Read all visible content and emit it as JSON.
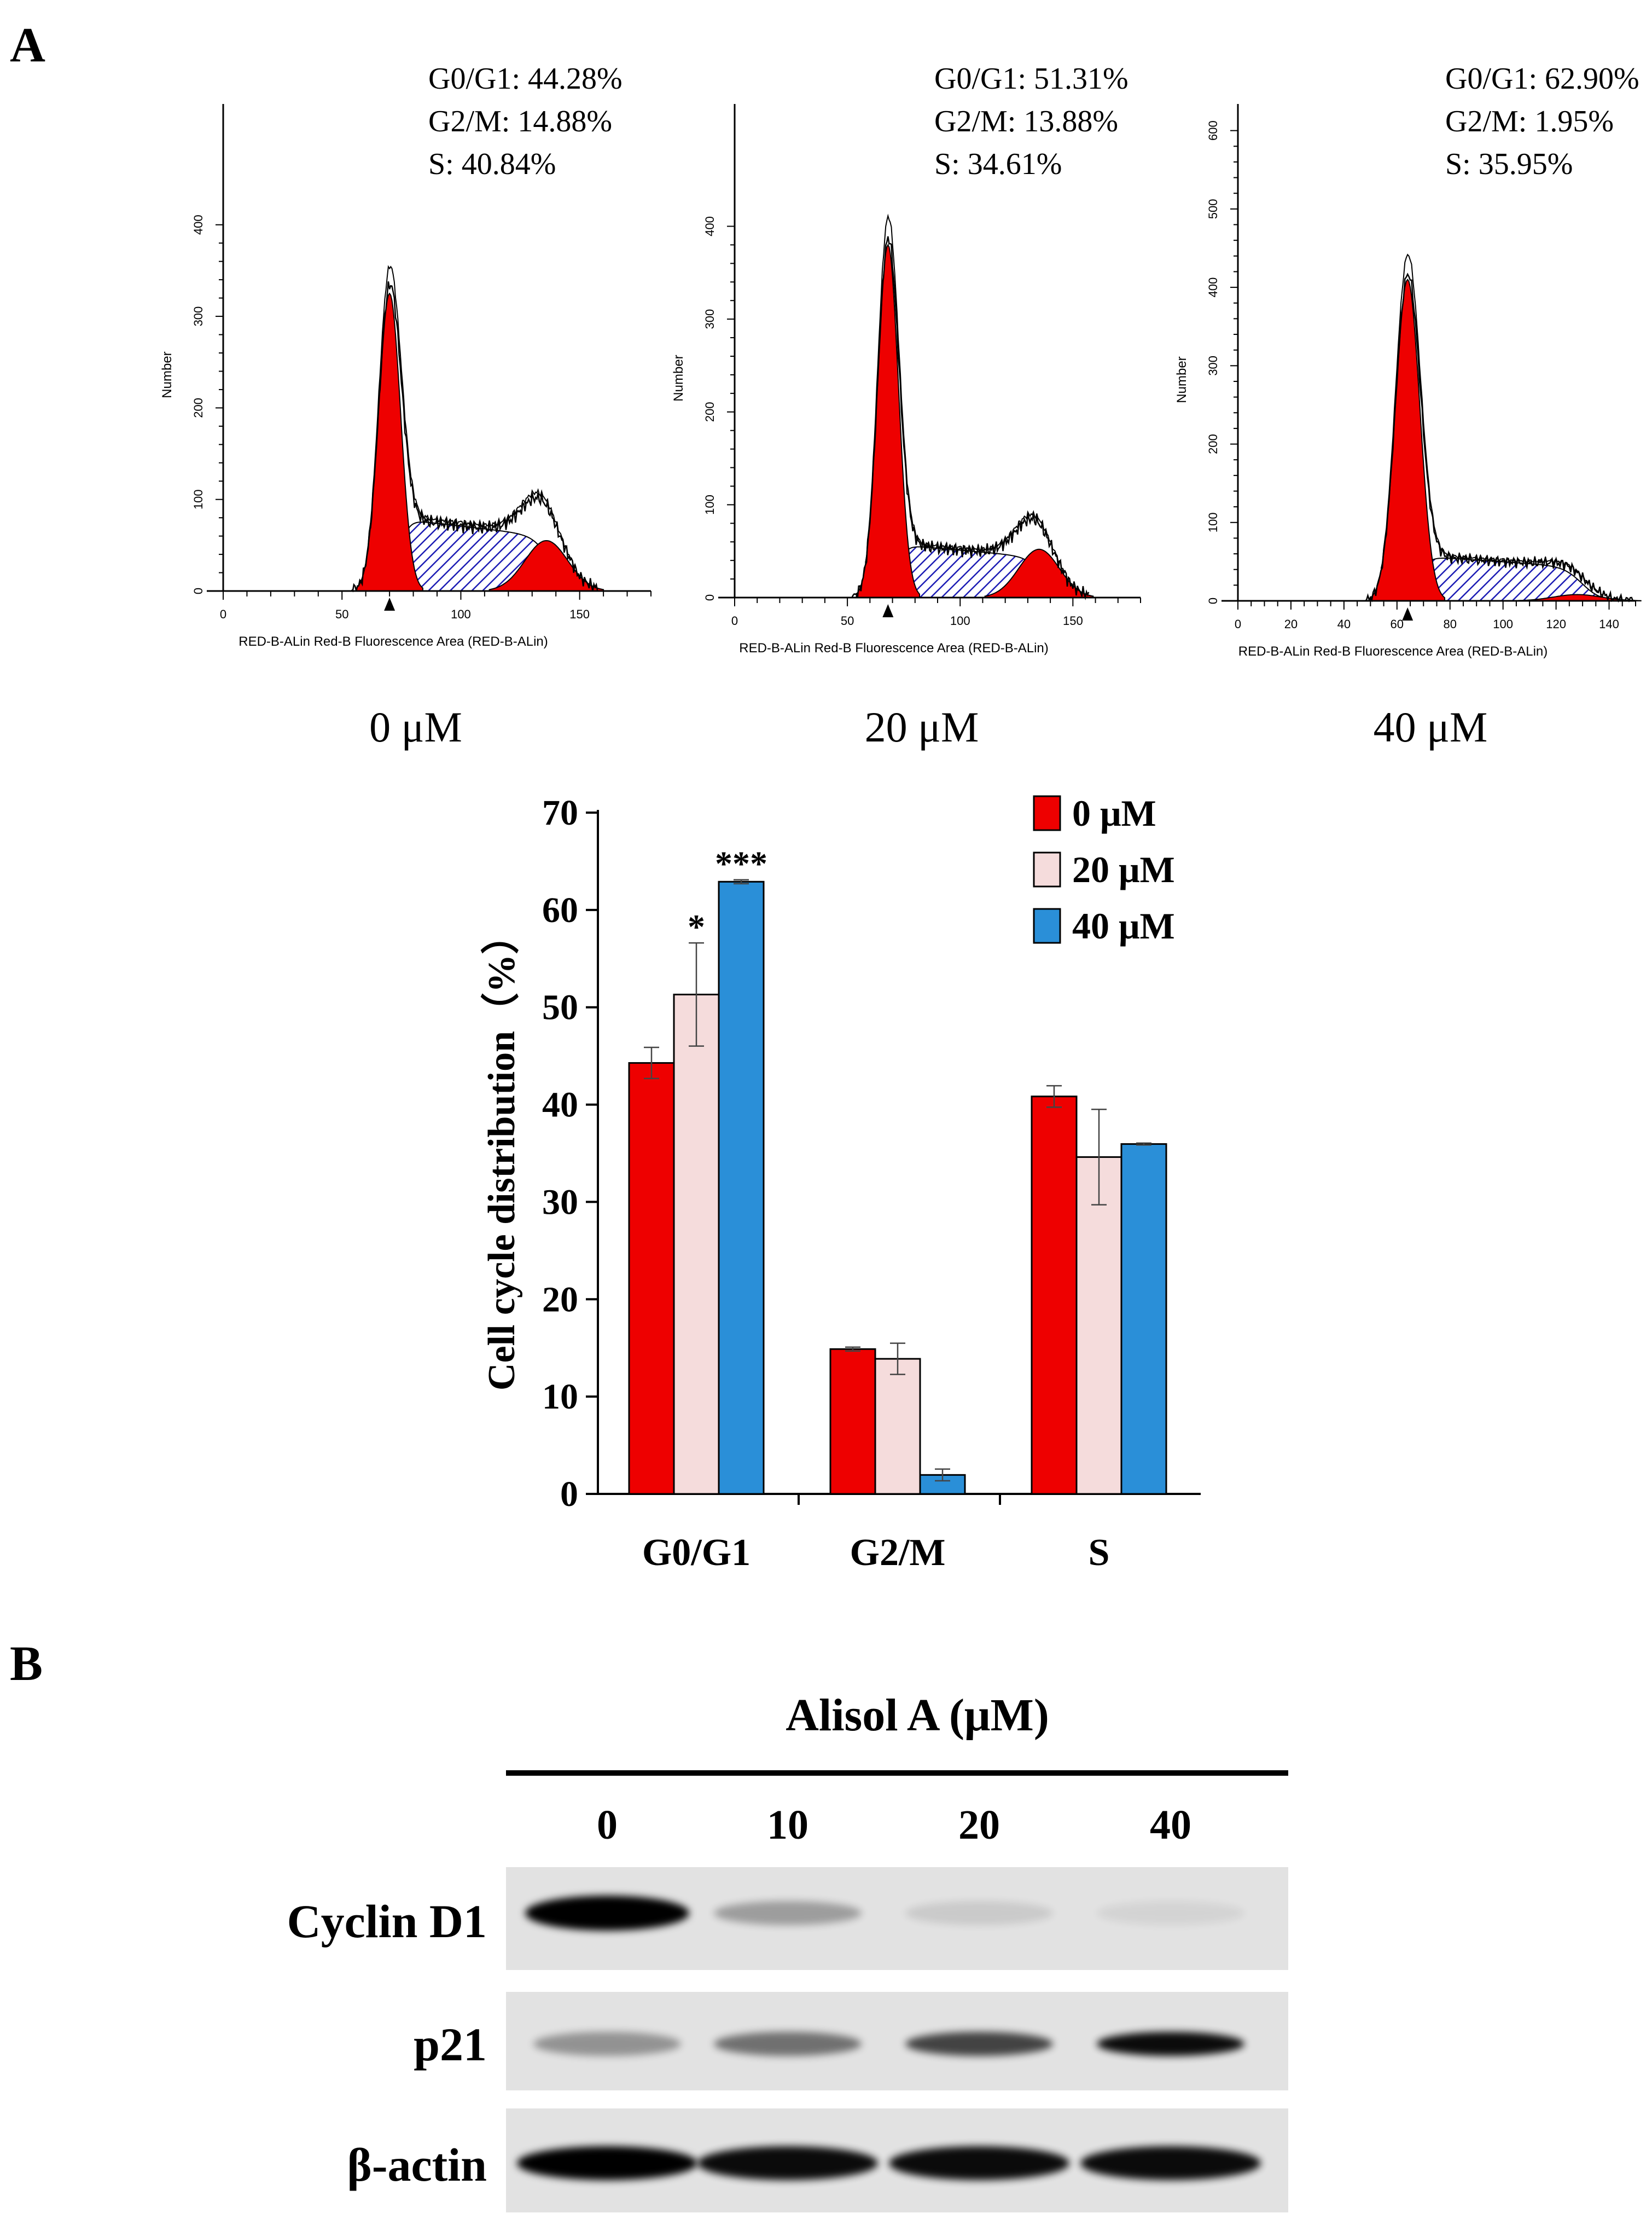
{
  "panel_labels": {
    "a": "A",
    "b": "B"
  },
  "histograms": [
    {
      "id": "h0",
      "stats": [
        "G0/G1: 44.28%",
        "G2/M: 14.88%",
        "S: 40.84%"
      ],
      "dose_label": "0 μM",
      "y_label": "Number",
      "x_label": "RED-B-ALin Red-B Fluorescence Area (RED-B-ALin)",
      "y_ticks": [
        "0",
        "100",
        "200",
        "300",
        "400"
      ],
      "x_ticks": [
        "0",
        "50",
        "100",
        "150"
      ],
      "x_max": 180,
      "y_max": 520,
      "g1_peak_channel": 70,
      "g2_peak_channel": 136
    },
    {
      "id": "h20",
      "stats": [
        "G0/G1: 51.31%",
        "G2/M: 13.88%",
        "S: 34.61%"
      ],
      "dose_label": "20 μM",
      "y_label": "Number",
      "x_label": "RED-B-ALin Red-B Fluorescence Area (RED-B-ALin)",
      "y_ticks": [
        "0",
        "100",
        "200",
        "300",
        "400"
      ],
      "x_ticks": [
        "0",
        "50",
        "100",
        "150"
      ],
      "x_max": 180,
      "y_max": 520,
      "g1_peak_channel": 68,
      "g2_peak_channel": 135
    },
    {
      "id": "h40",
      "stats": [
        "G0/G1: 62.90%",
        "G2/M: 1.95%",
        "S: 35.95%"
      ],
      "dose_label": "40 μM",
      "y_label": "Number",
      "x_label": "RED-B-ALin Red-B Fluorescence Area (RED-B-ALin)",
      "y_ticks": [
        "0",
        "100",
        "200",
        "300",
        "400",
        "500",
        "600"
      ],
      "x_ticks": [
        "0",
        "20",
        "40",
        "60",
        "80",
        "100",
        "120",
        "140"
      ],
      "x_max": 150,
      "y_max": 620,
      "g1_peak_channel": 64,
      "g2_peak_channel": 128
    }
  ],
  "chart_data": {
    "type": "bar",
    "title": "",
    "xlabel": "",
    "ylabel": "Cell cycle distribution（%）",
    "ylim": [
      0,
      70
    ],
    "y_ticks": [
      "0",
      "10",
      "20",
      "30",
      "40",
      "50",
      "60",
      "70"
    ],
    "categories": [
      "G0/G1",
      "G2/M",
      "S"
    ],
    "series": [
      {
        "name": "0 μM",
        "color": "#ee0000",
        "values": [
          44.28,
          14.88,
          40.84
        ],
        "errors": [
          1.6,
          0.2,
          1.1
        ]
      },
      {
        "name": "20 μM",
        "color": "#f5dcdc",
        "values": [
          51.31,
          13.88,
          34.61
        ],
        "errors": [
          5.3,
          1.6,
          4.9
        ]
      },
      {
        "name": "40 μM",
        "color": "#2a8fd8",
        "values": [
          62.9,
          1.95,
          35.95
        ],
        "errors": [
          0.2,
          0.6,
          0.1
        ]
      }
    ],
    "significance": [
      {
        "category": "G0/G1",
        "series": "20 μM",
        "mark": "*"
      },
      {
        "category": "G0/G1",
        "series": "40 μM",
        "mark": "***"
      }
    ],
    "legend": "top-right"
  },
  "western_blot": {
    "title": "Alisol A (μM)",
    "lanes": [
      "0",
      "10",
      "20",
      "40"
    ],
    "proteins": [
      {
        "name": "Cyclin D1",
        "band_intensity": [
          1.0,
          0.3,
          0.1,
          0.06
        ]
      },
      {
        "name": "p21",
        "band_intensity": [
          0.35,
          0.5,
          0.7,
          0.95
        ]
      },
      {
        "name": "β-actin",
        "band_intensity": [
          1.0,
          0.95,
          0.95,
          0.95
        ]
      }
    ]
  },
  "colors": {
    "g1_fill": "#ee0000",
    "s_hatch": "#1c1cb4",
    "membrane": "#e2e2e2"
  }
}
